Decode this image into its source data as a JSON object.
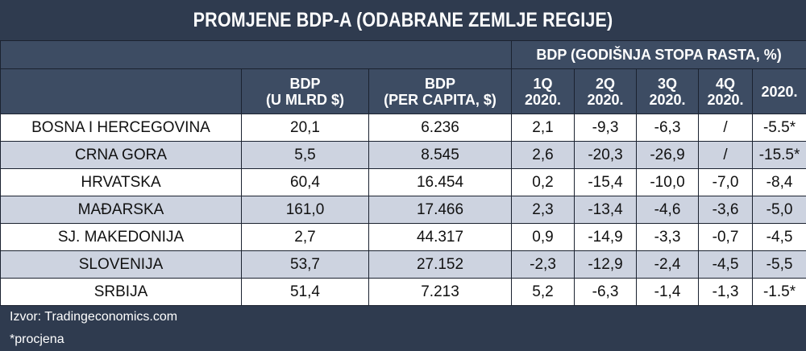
{
  "title": "PROMJENE BDP-A (ODABRANE ZEMLJE REGIJE)",
  "group_header": "BDP (GODIŠNJA STOPA RASTA, %)",
  "columns": {
    "bdp_line1": "BDP",
    "bdp_line2": "(U MLRD $)",
    "pc_line1": "BDP",
    "pc_line2": "(PER CAPITA, $)",
    "q1_line1": "1Q",
    "q1_line2": "2020.",
    "q2_line1": "2Q",
    "q2_line2": "2020.",
    "q3_line1": "3Q",
    "q3_line2": "2020.",
    "q4_line1": "4Q",
    "q4_line2": "2020.",
    "year": "2020."
  },
  "rows": [
    {
      "country": "BOSNA I HERCEGOVINA",
      "bdp": "20,1",
      "per_capita": "6.236",
      "q1": "2,1",
      "q2": "-9,3",
      "q3": "-6,3",
      "q4": "/",
      "year": "-5.5*"
    },
    {
      "country": "CRNA GORA",
      "bdp": "5,5",
      "per_capita": "8.545",
      "q1": "2,6",
      "q2": "-20,3",
      "q3": "-26,9",
      "q4": "/",
      "year": "-15.5*"
    },
    {
      "country": "HRVATSKA",
      "bdp": "60,4",
      "per_capita": "16.454",
      "q1": "0,2",
      "q2": "-15,4",
      "q3": "-10,0",
      "q4": "-7,0",
      "year": "-8,4"
    },
    {
      "country": "MAĐARSKA",
      "bdp": "161,0",
      "per_capita": "17.466",
      "q1": "2,3",
      "q2": "-13,4",
      "q3": "-4,6",
      "q4": "-3,6",
      "year": "-5,0"
    },
    {
      "country": "SJ. MAKEDONIJA",
      "bdp": "2,7",
      "per_capita": "44.317",
      "q1": "0,9",
      "q2": "-14,9",
      "q3": "-3,3",
      "q4": "-0,7",
      "year": "-4,5"
    },
    {
      "country": "SLOVENIJA",
      "bdp": "53,7",
      "per_capita": "27.152",
      "q1": "-2,3",
      "q2": "-12,9",
      "q3": "-2,4",
      "q4": "-4,5",
      "year": "-5,5"
    },
    {
      "country": "SRBIJA",
      "bdp": "51,4",
      "per_capita": "7.213",
      "q1": "5,2",
      "q2": "-6,3",
      "q3": "-1,4",
      "q4": "-1,3",
      "year": "-1.5*"
    }
  ],
  "footer": {
    "source": "Izvor: Tradingeconomics.com",
    "note": "*procjena"
  },
  "colors": {
    "header_bg": "#2f3b4f",
    "header_cell_bg": "#3d4c63",
    "row_light": "#ffffff",
    "row_shade": "#cdd3e0"
  }
}
